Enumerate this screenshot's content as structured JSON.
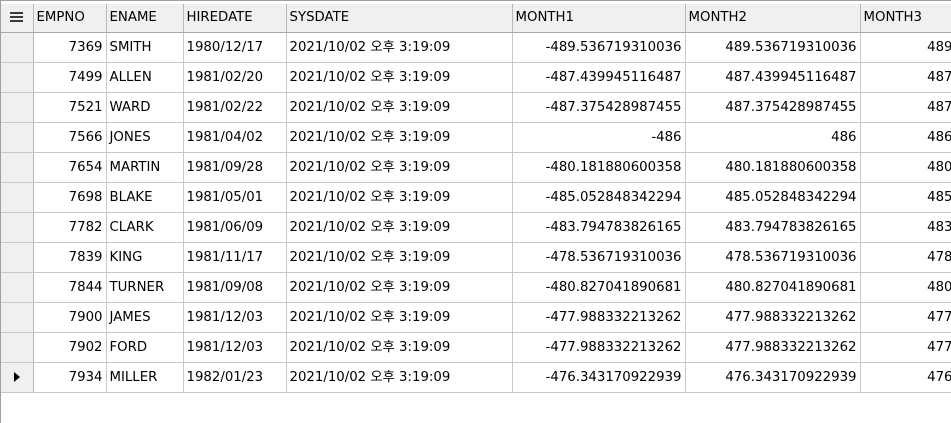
{
  "columns": [
    "EMPNO",
    "ENAME",
    "HIREDATE",
    "SYSDATE",
    "MONTH1",
    "MONTH2",
    "MONTH3"
  ],
  "current_row_index": 11,
  "rows": [
    {
      "empno": "7369",
      "ename": "SMITH",
      "hiredate": "1980/12/17",
      "sysdate": "2021/10/02 오후 3:19:09",
      "month1": "-489.536719310036",
      "month2": "489.536719310036",
      "month3": "489"
    },
    {
      "empno": "7499",
      "ename": "ALLEN",
      "hiredate": "1981/02/20",
      "sysdate": "2021/10/02 오후 3:19:09",
      "month1": "-487.439945116487",
      "month2": "487.439945116487",
      "month3": "487"
    },
    {
      "empno": "7521",
      "ename": "WARD",
      "hiredate": "1981/02/22",
      "sysdate": "2021/10/02 오후 3:19:09",
      "month1": "-487.375428987455",
      "month2": "487.375428987455",
      "month3": "487"
    },
    {
      "empno": "7566",
      "ename": "JONES",
      "hiredate": "1981/04/02",
      "sysdate": "2021/10/02 오후 3:19:09",
      "month1": "-486",
      "month2": "486",
      "month3": "486"
    },
    {
      "empno": "7654",
      "ename": "MARTIN",
      "hiredate": "1981/09/28",
      "sysdate": "2021/10/02 오후 3:19:09",
      "month1": "-480.181880600358",
      "month2": "480.181880600358",
      "month3": "480"
    },
    {
      "empno": "7698",
      "ename": "BLAKE",
      "hiredate": "1981/05/01",
      "sysdate": "2021/10/02 오후 3:19:09",
      "month1": "-485.052848342294",
      "month2": "485.052848342294",
      "month3": "485"
    },
    {
      "empno": "7782",
      "ename": "CLARK",
      "hiredate": "1981/06/09",
      "sysdate": "2021/10/02 오후 3:19:09",
      "month1": "-483.794783826165",
      "month2": "483.794783826165",
      "month3": "483"
    },
    {
      "empno": "7839",
      "ename": "KING",
      "hiredate": "1981/11/17",
      "sysdate": "2021/10/02 오후 3:19:09",
      "month1": "-478.536719310036",
      "month2": "478.536719310036",
      "month3": "478"
    },
    {
      "empno": "7844",
      "ename": "TURNER",
      "hiredate": "1981/09/08",
      "sysdate": "2021/10/02 오후 3:19:09",
      "month1": "-480.827041890681",
      "month2": "480.827041890681",
      "month3": "480"
    },
    {
      "empno": "7900",
      "ename": "JAMES",
      "hiredate": "1981/12/03",
      "sysdate": "2021/10/02 오후 3:19:09",
      "month1": "-477.988332213262",
      "month2": "477.988332213262",
      "month3": "477"
    },
    {
      "empno": "7902",
      "ename": "FORD",
      "hiredate": "1981/12/03",
      "sysdate": "2021/10/02 오후 3:19:09",
      "month1": "-477.988332213262",
      "month2": "477.988332213262",
      "month3": "477"
    },
    {
      "empno": "7934",
      "ename": "MILLER",
      "hiredate": "1982/01/23",
      "sysdate": "2021/10/02 오후 3:19:09",
      "month1": "-476.343170922939",
      "month2": "476.343170922939",
      "month3": "476"
    }
  ]
}
